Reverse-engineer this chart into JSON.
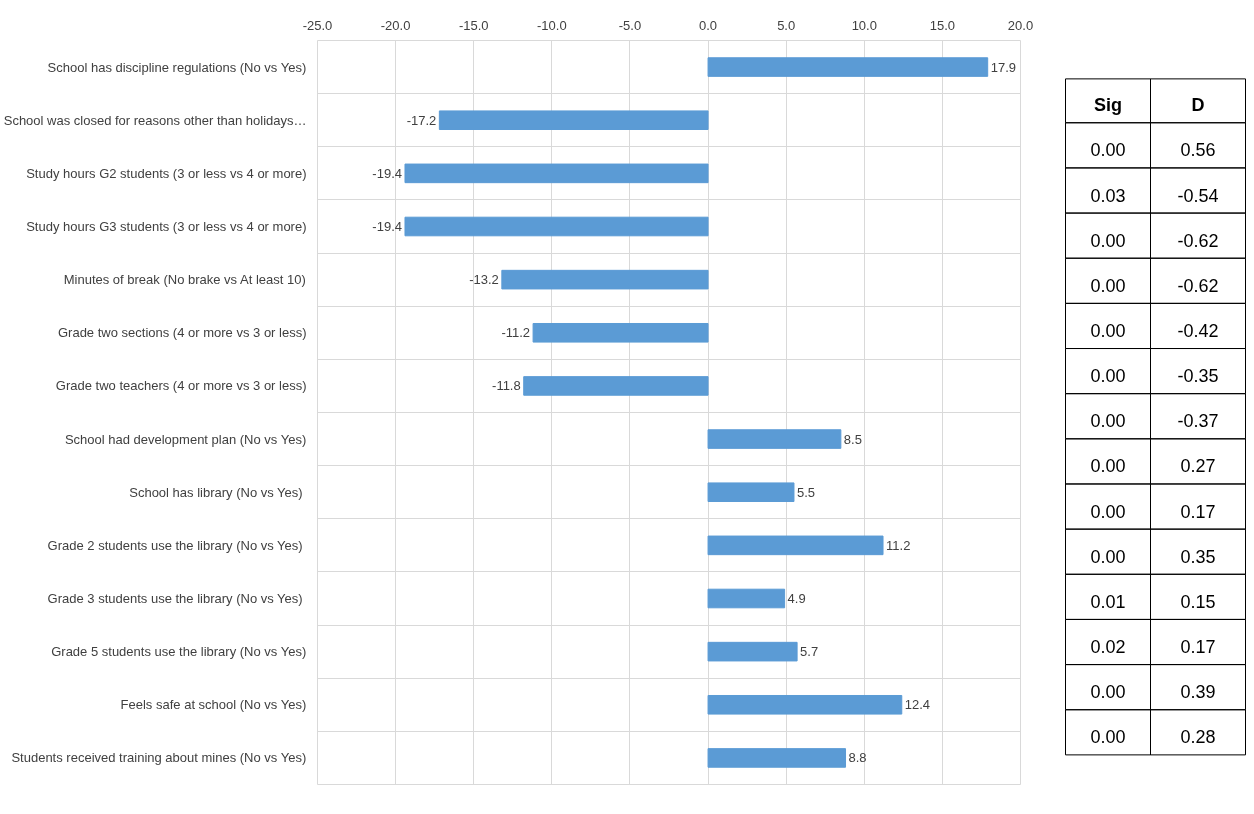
{
  "chart_data": [
    {
      "type": "bar",
      "orientation": "horizontal",
      "categories": [
        "School has discipline regulations (No vs Yes)",
        "School was closed for reasons other than holidays…",
        "Study hours G2 students (3 or less vs 4 or more)",
        "Study hours G3 students (3 or less vs 4 or more)",
        "Minutes of break (No brake vs At least 10)",
        "Grade two sections (4 or more vs 3 or less)",
        "Grade two teachers (4 or more vs 3 or less)",
        "School had development plan (No vs Yes)",
        "School has library  (No vs Yes)",
        "Grade 2 students use the library  (No vs Yes)",
        "Grade 3 students use the library  (No vs Yes)",
        "Grade 5 students use the library (No vs Yes)",
        "Feels safe at school (No vs Yes)",
        "Students received training about mines (No vs Yes)"
      ],
      "values": [
        17.9,
        -17.2,
        -19.4,
        -19.4,
        -13.2,
        -11.2,
        -11.8,
        8.5,
        5.5,
        11.2,
        4.9,
        5.7,
        12.4,
        8.8
      ],
      "color": "#5b9bd5",
      "data_labels": true,
      "grid": true,
      "xlim": [
        -25,
        20
      ],
      "xticks": [
        {
          "value": -25,
          "label": "-25.0"
        },
        {
          "value": -20,
          "label": "-20.0"
        },
        {
          "value": -15,
          "label": "-15.0"
        },
        {
          "value": -10,
          "label": "-10.0"
        },
        {
          "value": -5,
          "label": "-5.0"
        },
        {
          "value": 0,
          "label": "0.0"
        },
        {
          "value": 5,
          "label": "5.0"
        },
        {
          "value": 10,
          "label": "10.0"
        },
        {
          "value": 15,
          "label": "15.0"
        },
        {
          "value": 20,
          "label": "20.0"
        }
      ]
    },
    {
      "type": "other",
      "annotations": [
        "Sig",
        "D",
        "0.00",
        "0.56",
        "0.03",
        "-0.54",
        "0.00",
        "-0.62",
        "0.00",
        "-0.62",
        "0.00",
        "-0.42",
        "0.00",
        "-0.35",
        "0.00",
        "-0.37",
        "0.00",
        "0.27",
        "0.00",
        "0.17",
        "0.00",
        "0.35",
        "0.01",
        "0.15",
        "0.02",
        "0.17",
        "0.00",
        "0.39",
        "0.00",
        "0.28"
      ]
    }
  ]
}
